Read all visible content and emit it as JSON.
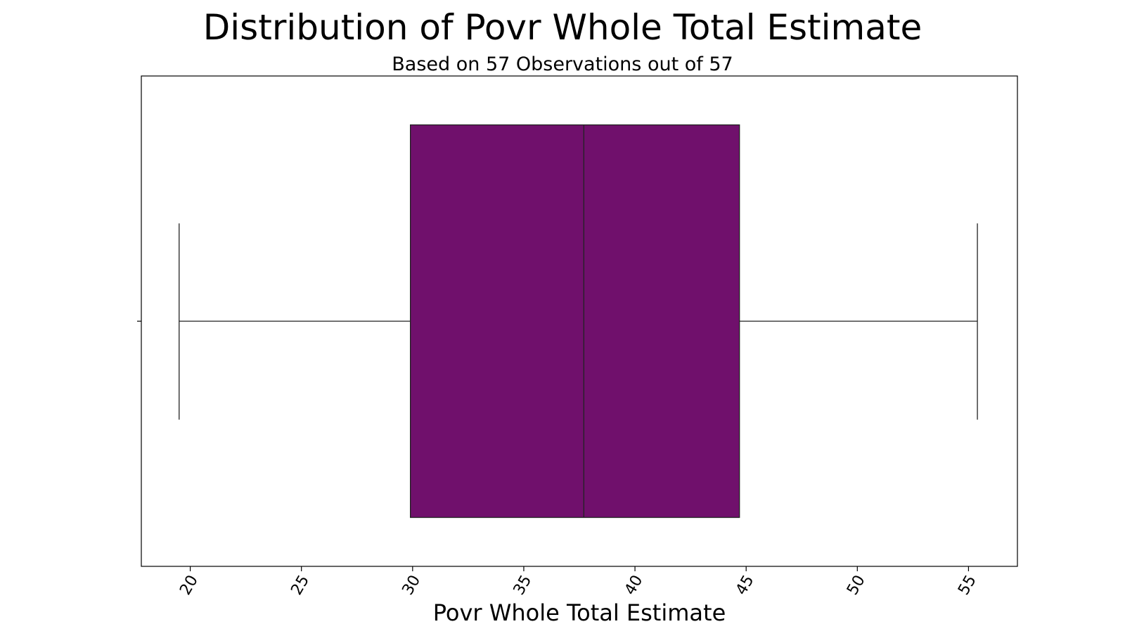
{
  "chart_data": {
    "type": "box",
    "title": "Distribution of Povr Whole Total Estimate",
    "subtitle": "Based on 57 Observations out of 57",
    "xlabel": "Povr Whole Total Estimate",
    "ylabel": "",
    "xlim": [
      17.8,
      57.2
    ],
    "x_ticks": [
      20,
      25,
      30,
      35,
      40,
      45,
      50,
      55
    ],
    "x_tick_labels": [
      "20",
      "25",
      "30",
      "35",
      "40",
      "45",
      "50",
      "55"
    ],
    "box": {
      "whisker_low": 19.5,
      "q1": 29.9,
      "median": 37.7,
      "q3": 44.7,
      "whisker_high": 55.4
    },
    "observations": 57,
    "total": 57,
    "grid": false,
    "colors": {
      "box_fill": "#70106c",
      "line": "#222222"
    }
  }
}
